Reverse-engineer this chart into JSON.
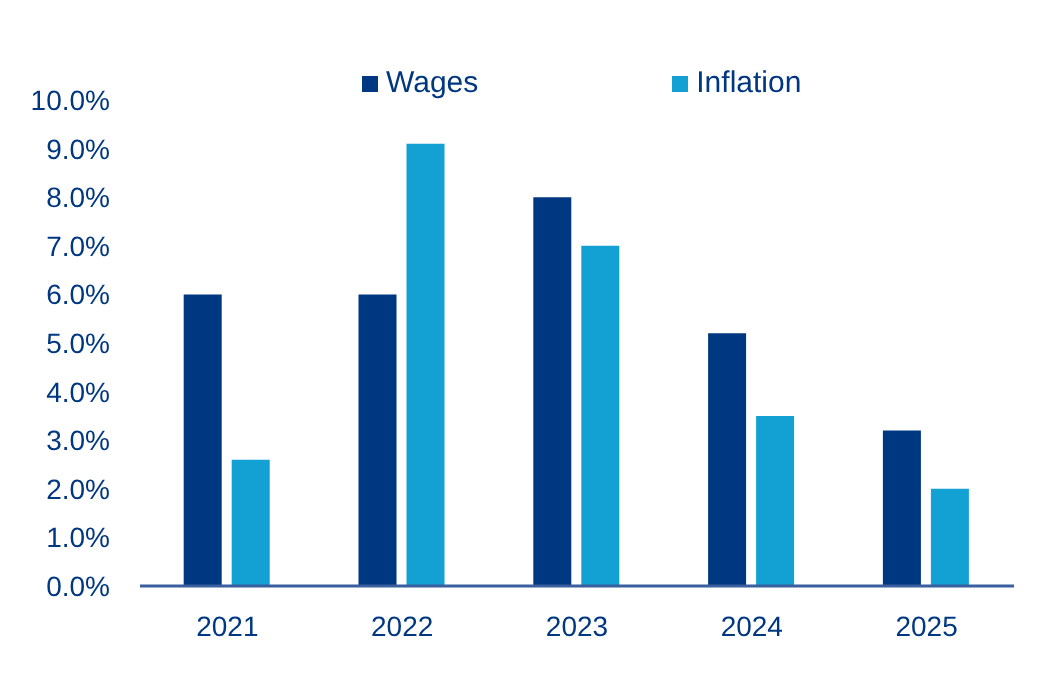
{
  "chart_data": {
    "type": "bar",
    "categories": [
      "2021",
      "2022",
      "2023",
      "2024",
      "2025"
    ],
    "series": [
      {
        "name": "Wages",
        "color": "#003781",
        "values": [
          6.0,
          6.0,
          8.0,
          5.2,
          3.2
        ]
      },
      {
        "name": "Inflation",
        "color": "#13a0d3",
        "values": [
          2.6,
          9.1,
          7.0,
          3.5,
          2.0
        ]
      }
    ],
    "ylim": [
      0,
      10
    ],
    "yticks": [
      {
        "value": 0,
        "label": "0.0%"
      },
      {
        "value": 1,
        "label": "1.0%"
      },
      {
        "value": 2,
        "label": "2.0%"
      },
      {
        "value": 3,
        "label": "3.0%"
      },
      {
        "value": 4,
        "label": "4.0%"
      },
      {
        "value": 5,
        "label": "5.0%"
      },
      {
        "value": 6,
        "label": "6.0%"
      },
      {
        "value": 7,
        "label": "7.0%"
      },
      {
        "value": 8,
        "label": "8.0%"
      },
      {
        "value": 9,
        "label": "9.0%"
      },
      {
        "value": 10,
        "label": "10.0%"
      }
    ],
    "legend": "top"
  }
}
